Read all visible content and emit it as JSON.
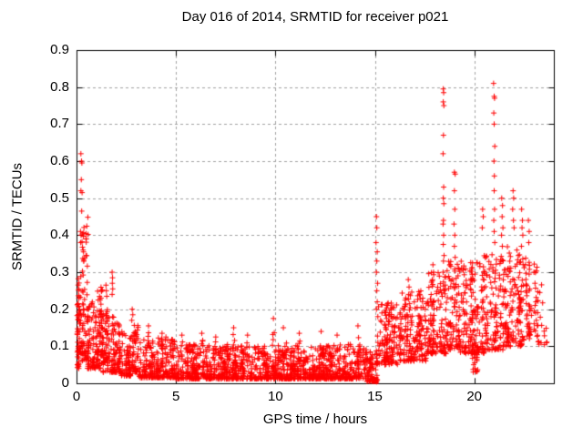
{
  "window": {
    "background": "#ffffff"
  },
  "chart_data": {
    "type": "scatter",
    "title": "Day 016 of 2014, SRMTID for receiver p021",
    "xlabel": "GPS time / hours",
    "ylabel": "SRMTID / TECUs",
    "xlim": [
      0,
      24
    ],
    "ylim": [
      0,
      0.9
    ],
    "x_ticks": [
      0,
      5,
      10,
      15,
      20
    ],
    "y_ticks": [
      0,
      0.1,
      0.2,
      0.3,
      0.4,
      0.5,
      0.6,
      0.7,
      0.8,
      0.9
    ],
    "grid": true,
    "legend_position": "none",
    "marker": {
      "glyph": "plus",
      "size": 7,
      "color": "#ff0000"
    },
    "grid_color": "#a0a0a0",
    "frame_color": "#000000",
    "seed": 20140116,
    "envelope_by_hour": {
      "hours": [
        0,
        1,
        2,
        3,
        4,
        5,
        6,
        7,
        8,
        9,
        10,
        11,
        12,
        13,
        14,
        15,
        16,
        17,
        18,
        19,
        20,
        21,
        22,
        23
      ],
      "typical": [
        0.15,
        0.1,
        0.07,
        0.06,
        0.05,
        0.05,
        0.04,
        0.04,
        0.04,
        0.05,
        0.05,
        0.04,
        0.04,
        0.04,
        0.04,
        0.13,
        0.13,
        0.15,
        0.18,
        0.18,
        0.2,
        0.22,
        0.22,
        0.2
      ],
      "max": [
        0.62,
        0.26,
        0.3,
        0.17,
        0.155,
        0.135,
        0.135,
        0.125,
        0.15,
        0.14,
        0.175,
        0.15,
        0.135,
        0.14,
        0.155,
        0.45,
        0.28,
        0.32,
        0.795,
        0.57,
        0.47,
        0.81,
        0.52,
        0.3
      ]
    },
    "spike_points": [
      [
        0.22,
        0.62
      ],
      [
        0.25,
        0.6
      ],
      [
        0.27,
        0.595
      ],
      [
        0.24,
        0.55
      ],
      [
        0.22,
        0.52
      ],
      [
        0.28,
        0.515
      ],
      [
        0.26,
        0.465
      ],
      [
        0.2,
        0.41
      ],
      [
        0.23,
        0.4
      ],
      [
        0.21,
        0.38
      ],
      [
        1.48,
        0.265
      ],
      [
        1.5,
        0.25
      ],
      [
        1.52,
        0.235
      ],
      [
        1.79,
        0.3
      ],
      [
        1.81,
        0.285
      ],
      [
        1.8,
        0.27
      ],
      [
        1.82,
        0.255
      ],
      [
        1.79,
        0.24
      ],
      [
        2.8,
        0.2
      ],
      [
        2.83,
        0.185
      ],
      [
        2.78,
        0.17
      ],
      [
        15.08,
        0.45
      ],
      [
        15.1,
        0.42
      ],
      [
        15.06,
        0.38
      ],
      [
        15.12,
        0.355
      ],
      [
        15.1,
        0.33
      ],
      [
        15.08,
        0.3
      ],
      [
        15.14,
        0.27
      ],
      [
        15.1,
        0.25
      ],
      [
        15.12,
        0.22
      ],
      [
        15.08,
        0.2
      ],
      [
        15.15,
        0.18
      ],
      [
        16.68,
        0.28
      ],
      [
        16.72,
        0.26
      ],
      [
        16.7,
        0.24
      ],
      [
        16.75,
        0.215
      ],
      [
        17.92,
        0.32
      ],
      [
        17.95,
        0.3
      ],
      [
        17.9,
        0.28
      ],
      [
        18.44,
        0.795
      ],
      [
        18.46,
        0.785
      ],
      [
        18.44,
        0.76
      ],
      [
        18.47,
        0.75
      ],
      [
        18.45,
        0.67
      ],
      [
        18.43,
        0.62
      ],
      [
        18.46,
        0.53
      ],
      [
        18.44,
        0.5
      ],
      [
        18.47,
        0.485
      ],
      [
        18.45,
        0.44
      ],
      [
        18.43,
        0.43
      ],
      [
        18.46,
        0.4
      ],
      [
        18.44,
        0.375
      ],
      [
        18.48,
        0.345
      ],
      [
        18.45,
        0.33
      ],
      [
        18.43,
        0.3
      ],
      [
        19.0,
        0.57
      ],
      [
        19.04,
        0.565
      ],
      [
        19.0,
        0.52
      ],
      [
        19.02,
        0.47
      ],
      [
        18.98,
        0.43
      ],
      [
        19.02,
        0.4
      ],
      [
        19.0,
        0.37
      ],
      [
        19.04,
        0.34
      ],
      [
        20.42,
        0.47
      ],
      [
        20.45,
        0.45
      ],
      [
        20.4,
        0.42
      ],
      [
        20.97,
        0.81
      ],
      [
        21.0,
        0.775
      ],
      [
        21.02,
        0.77
      ],
      [
        20.98,
        0.73
      ],
      [
        21.0,
        0.7
      ],
      [
        21.03,
        0.64
      ],
      [
        20.99,
        0.6
      ],
      [
        21.01,
        0.56
      ],
      [
        21.0,
        0.52
      ],
      [
        21.02,
        0.47
      ],
      [
        20.98,
        0.44
      ],
      [
        21.0,
        0.41
      ],
      [
        21.03,
        0.38
      ],
      [
        21.38,
        0.5
      ],
      [
        21.42,
        0.48
      ],
      [
        21.4,
        0.45
      ],
      [
        21.44,
        0.42
      ],
      [
        21.37,
        0.4
      ],
      [
        21.41,
        0.37
      ],
      [
        21.95,
        0.52
      ],
      [
        21.98,
        0.5
      ],
      [
        21.93,
        0.47
      ],
      [
        21.97,
        0.44
      ],
      [
        22.0,
        0.42
      ],
      [
        22.38,
        0.47
      ],
      [
        22.42,
        0.44
      ],
      [
        22.4,
        0.42
      ],
      [
        22.44,
        0.4
      ],
      [
        22.37,
        0.37
      ],
      [
        22.72,
        0.44
      ],
      [
        22.76,
        0.41
      ],
      [
        22.74,
        0.38
      ],
      [
        23.0,
        0.3
      ],
      [
        23.05,
        0.27
      ],
      [
        23.1,
        0.22
      ],
      [
        23.08,
        0.19
      ],
      [
        23.12,
        0.17
      ]
    ],
    "column_bumps": [
      [
        3.62,
        0.155
      ],
      [
        4.3,
        0.135
      ],
      [
        5.3,
        0.13
      ],
      [
        6.3,
        0.135
      ],
      [
        7.0,
        0.125
      ],
      [
        7.9,
        0.15
      ],
      [
        8.6,
        0.13
      ],
      [
        9.9,
        0.175
      ],
      [
        10.4,
        0.15
      ],
      [
        11.2,
        0.135
      ],
      [
        12.3,
        0.14
      ],
      [
        13.1,
        0.13
      ],
      [
        14.15,
        0.155
      ]
    ],
    "band_clusters": [
      [
        0.02,
        0.12,
        30,
        0.04,
        0.24,
        1.2
      ],
      [
        0.08,
        0.35,
        40,
        0.08,
        0.3,
        1.5
      ],
      [
        0.3,
        0.55,
        24,
        0.28,
        0.45,
        1.0
      ],
      [
        0.28,
        0.6,
        46,
        0.06,
        0.28,
        1.8
      ],
      [
        0.55,
        1.05,
        80,
        0.04,
        0.22,
        1.8
      ],
      [
        1.05,
        1.3,
        60,
        0.04,
        0.26,
        1.6
      ],
      [
        1.3,
        1.6,
        55,
        0.03,
        0.2,
        1.7
      ],
      [
        1.6,
        1.95,
        48,
        0.03,
        0.18,
        1.8
      ],
      [
        1.95,
        2.2,
        40,
        0.03,
        0.17,
        1.7
      ],
      [
        2.2,
        2.75,
        75,
        0.02,
        0.14,
        1.9
      ],
      [
        2.75,
        3.1,
        48,
        0.03,
        0.16,
        1.8
      ],
      [
        3.1,
        5.0,
        230,
        0.015,
        0.125,
        2.0
      ],
      [
        5.0,
        9.0,
        480,
        0.012,
        0.105,
        2.1
      ],
      [
        9.0,
        12.0,
        380,
        0.012,
        0.11,
        2.1
      ],
      [
        12.0,
        14.6,
        320,
        0.012,
        0.105,
        2.1
      ],
      [
        14.6,
        15.12,
        65,
        0.004,
        0.09,
        1.8
      ],
      [
        15.12,
        16.4,
        165,
        0.05,
        0.22,
        1.6
      ],
      [
        16.4,
        17.6,
        155,
        0.06,
        0.25,
        1.6
      ],
      [
        17.6,
        18.6,
        135,
        0.08,
        0.3,
        1.6
      ],
      [
        18.6,
        19.3,
        90,
        0.09,
        0.33,
        1.5
      ],
      [
        19.3,
        20.5,
        165,
        0.08,
        0.33,
        1.7
      ],
      [
        19.9,
        20.3,
        22,
        0.03,
        0.1,
        1.5
      ],
      [
        20.5,
        21.6,
        145,
        0.09,
        0.35,
        1.6
      ],
      [
        21.6,
        22.6,
        125,
        0.1,
        0.37,
        1.6
      ],
      [
        22.6,
        23.2,
        55,
        0.12,
        0.33,
        1.4
      ],
      [
        23.2,
        23.9,
        16,
        0.1,
        0.28,
        1.3
      ]
    ],
    "square_points": [
      [
        15.0,
        0.008
      ]
    ]
  }
}
